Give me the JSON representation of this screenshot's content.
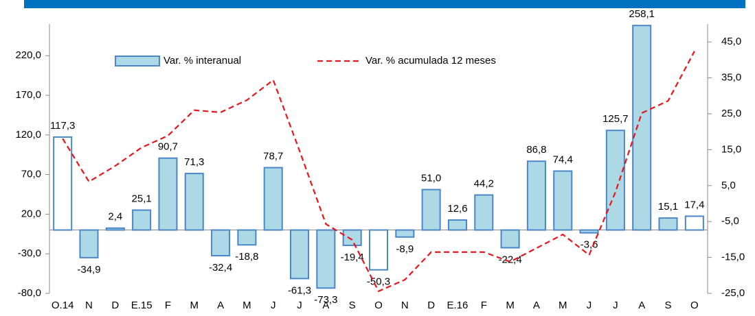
{
  "chart_data": {
    "type": "bar_line",
    "categories": [
      "O.14",
      "N",
      "D",
      "E.15",
      "F",
      "M",
      "A",
      "M",
      "J",
      "J",
      "A",
      "S",
      "O",
      "N",
      "D",
      "E.16",
      "F",
      "M",
      "A",
      "M",
      "J",
      "J",
      "A",
      "S",
      "O"
    ],
    "series": [
      {
        "name": "Var. % interanual",
        "type": "bar",
        "color": "#add8e6",
        "edge_color": "#4a86c8",
        "colors": [
          "#ffffff",
          "#add8e6",
          "#add8e6",
          "#add8e6",
          "#add8e6",
          "#add8e6",
          "#add8e6",
          "#add8e6",
          "#add8e6",
          "#add8e6",
          "#add8e6",
          "#add8e6",
          "#ffffff",
          "#add8e6",
          "#add8e6",
          "#add8e6",
          "#add8e6",
          "#add8e6",
          "#add8e6",
          "#add8e6",
          "#add8e6",
          "#add8e6",
          "#add8e6",
          "#add8e6",
          "#ffffff"
        ],
        "values": [
          117.3,
          -34.9,
          2.4,
          25.1,
          90.7,
          71.3,
          -32.4,
          -18.8,
          78.7,
          -61.3,
          -73.3,
          -19.4,
          -50.3,
          -8.9,
          51.0,
          12.6,
          44.2,
          -22.4,
          86.8,
          74.4,
          -3.6,
          125.7,
          258.1,
          15.1,
          17.4
        ],
        "value_labels": [
          "117,3",
          "-34,9",
          "2,4",
          "25,1",
          "90,7",
          "71,3",
          "-32,4",
          "-18,8",
          "78,7",
          "-61,3",
          "-73,3",
          "-19,4",
          "-50,3",
          "-8,9",
          "51,0",
          "12,6",
          "44,2",
          "-22,4",
          "86,8",
          "74,4",
          "-3,6",
          "125,7",
          "258,1",
          "15,1",
          "17,4"
        ]
      },
      {
        "name": "Var. % acumulada 12 meses",
        "type": "line",
        "axis": "y2",
        "color": "#e8141c",
        "dashed": true,
        "values": [
          18.1,
          6.1,
          10.5,
          15.6,
          18.9,
          26.0,
          25.4,
          28.8,
          34.4,
          14.7,
          -5.7,
          -10.1,
          -24.4,
          -21.2,
          -13.5,
          -13.5,
          -13.5,
          -16.2,
          -12.4,
          -8.6,
          -14.3,
          3.2,
          25.2,
          28.6,
          42.4
        ]
      }
    ],
    "ylim": [
      -80,
      260
    ],
    "yticks": [
      {
        "value": -80,
        "label": "-80,0"
      },
      {
        "value": -30,
        "label": "-30,0"
      },
      {
        "value": 20,
        "label": "20,0"
      },
      {
        "value": 70,
        "label": "70,0"
      },
      {
        "value": 120,
        "label": "120,0"
      },
      {
        "value": 170,
        "label": "170,0"
      },
      {
        "value": 220,
        "label": "220,0"
      }
    ],
    "y2lim": [
      -25,
      50
    ],
    "y2ticks": [
      {
        "value": -25,
        "label": "-25,0"
      },
      {
        "value": -15,
        "label": "-15,0"
      },
      {
        "value": -5,
        "label": "-5,0"
      },
      {
        "value": 5,
        "label": "5,0"
      },
      {
        "value": 15,
        "label": "15,0"
      },
      {
        "value": 25,
        "label": "25,0"
      },
      {
        "value": 35,
        "label": "35,0"
      },
      {
        "value": 45,
        "label": "45,0"
      }
    ],
    "grid": false
  }
}
